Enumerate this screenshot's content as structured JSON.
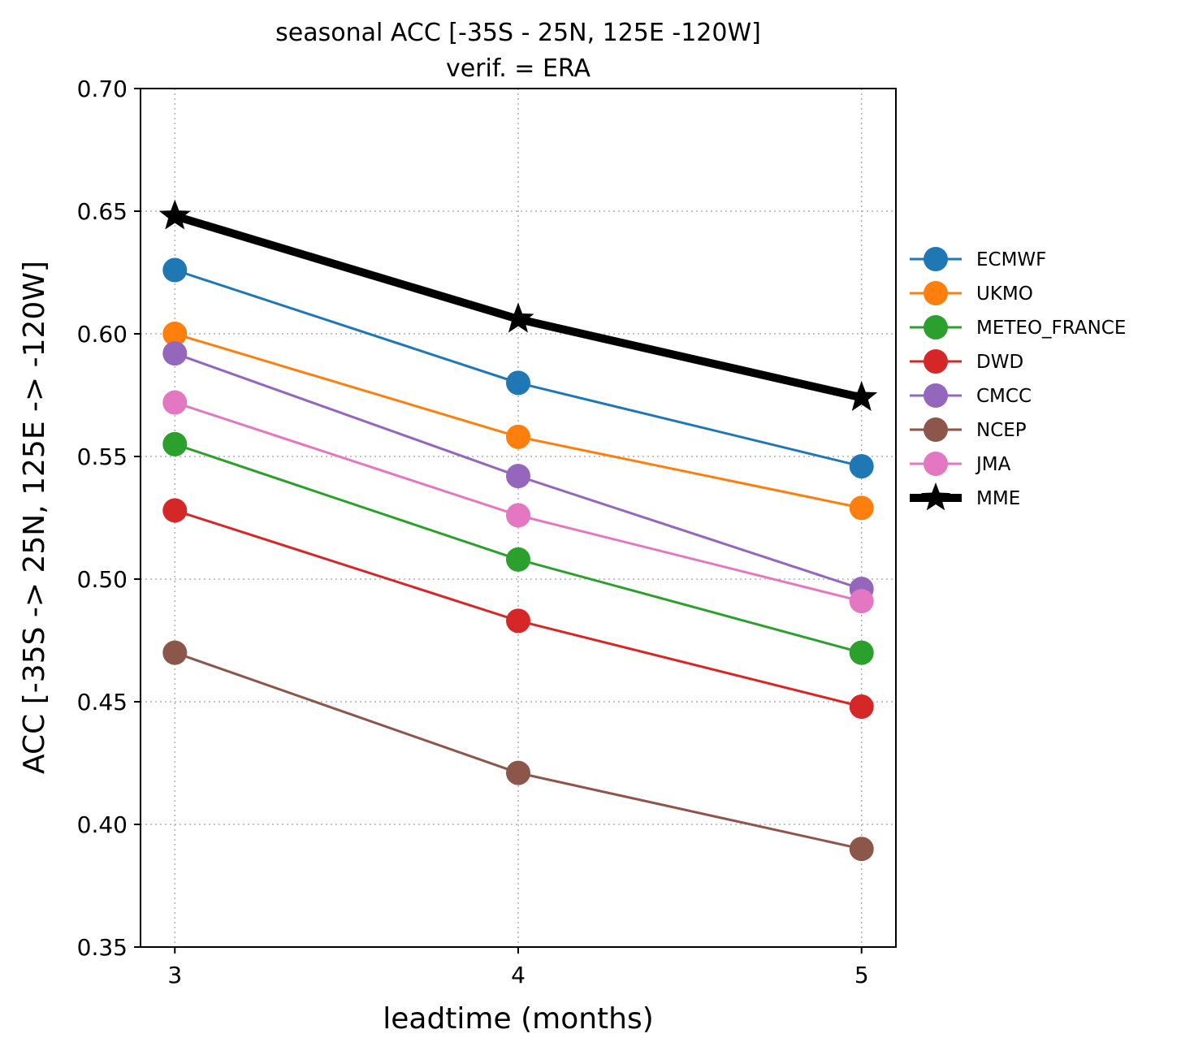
{
  "chart_data": {
    "type": "line",
    "title": "seasonal ACC [-35S - 25N, 125E -120W]",
    "subtitle": "verif. = ERA",
    "xlabel": "leadtime (months)",
    "ylabel": "ACC [-35S -> 25N, 125E -> -120W]",
    "x": [
      3,
      4,
      5
    ],
    "xlim": [
      2.9,
      5.1
    ],
    "ylim": [
      0.35,
      0.7
    ],
    "xticks": [
      "3",
      "4",
      "5"
    ],
    "yticks": [
      "0.35",
      "0.40",
      "0.45",
      "0.50",
      "0.55",
      "0.60",
      "0.65",
      "0.70"
    ],
    "grid": true,
    "legend_position": "right",
    "series": [
      {
        "name": "ECMWF",
        "color": "#1f77b4",
        "marker": "circle",
        "values": [
          0.626,
          0.58,
          0.546
        ]
      },
      {
        "name": "UKMO",
        "color": "#ff7f0e",
        "marker": "circle",
        "values": [
          0.6,
          0.558,
          0.529
        ]
      },
      {
        "name": "METEO_FRANCE",
        "color": "#2ca02c",
        "marker": "circle",
        "values": [
          0.555,
          0.508,
          0.47
        ]
      },
      {
        "name": "DWD",
        "color": "#d62728",
        "marker": "circle",
        "values": [
          0.528,
          0.483,
          0.448
        ]
      },
      {
        "name": "CMCC",
        "color": "#9467bd",
        "marker": "circle",
        "values": [
          0.592,
          0.542,
          0.496
        ]
      },
      {
        "name": "NCEP",
        "color": "#8c564b",
        "marker": "circle",
        "values": [
          0.47,
          0.421,
          0.39
        ]
      },
      {
        "name": "JMA",
        "color": "#e377c2",
        "marker": "circle",
        "values": [
          0.572,
          0.526,
          0.491
        ]
      },
      {
        "name": "MME",
        "color": "#000000",
        "marker": "star",
        "values": [
          0.648,
          0.606,
          0.574
        ]
      }
    ]
  }
}
